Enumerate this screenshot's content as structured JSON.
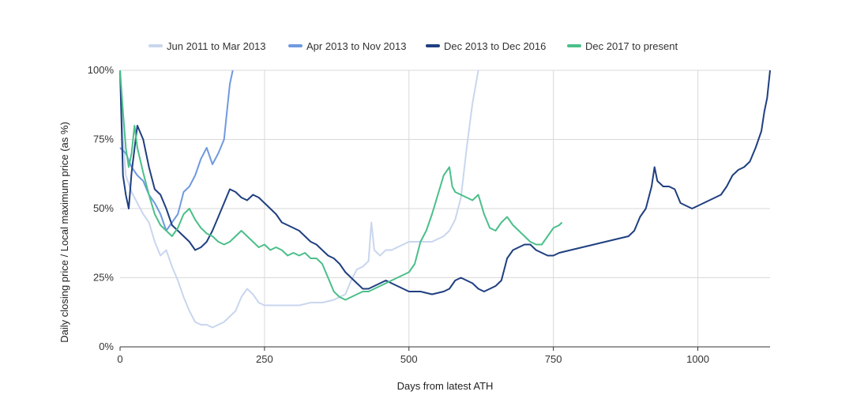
{
  "chart_data": {
    "type": "line",
    "xlabel": "Days from latest ATH",
    "ylabel": "Daily closing price / Local maximum price (as %)",
    "xlim": [
      0,
      1125
    ],
    "ylim": [
      0,
      100
    ],
    "x_ticks": [
      0,
      250,
      500,
      750,
      1000
    ],
    "y_ticks": [
      0,
      25,
      50,
      75,
      100
    ],
    "x_tick_labels": [
      "0",
      "250",
      "500",
      "750",
      "1000"
    ],
    "y_tick_labels": [
      "0%",
      "25%",
      "50%",
      "75%",
      "100%"
    ],
    "grid": true,
    "legend_position": "top",
    "series": [
      {
        "name": "Jun 2011 to Mar 2013",
        "color": "#c9d6ee",
        "points": [
          [
            0,
            100
          ],
          [
            5,
            75
          ],
          [
            10,
            62
          ],
          [
            20,
            56
          ],
          [
            30,
            52
          ],
          [
            40,
            48
          ],
          [
            50,
            45
          ],
          [
            60,
            38
          ],
          [
            70,
            33
          ],
          [
            80,
            35
          ],
          [
            90,
            29
          ],
          [
            100,
            24
          ],
          [
            110,
            18
          ],
          [
            120,
            13
          ],
          [
            130,
            9
          ],
          [
            140,
            8
          ],
          [
            150,
            8
          ],
          [
            160,
            7
          ],
          [
            170,
            8
          ],
          [
            180,
            9
          ],
          [
            190,
            11
          ],
          [
            200,
            13
          ],
          [
            210,
            18
          ],
          [
            220,
            21
          ],
          [
            230,
            19
          ],
          [
            240,
            16
          ],
          [
            250,
            15
          ],
          [
            270,
            15
          ],
          [
            290,
            15
          ],
          [
            310,
            15
          ],
          [
            330,
            16
          ],
          [
            350,
            16
          ],
          [
            370,
            17
          ],
          [
            390,
            19
          ],
          [
            400,
            24
          ],
          [
            410,
            28
          ],
          [
            420,
            29
          ],
          [
            430,
            31
          ],
          [
            435,
            45
          ],
          [
            440,
            35
          ],
          [
            450,
            33
          ],
          [
            460,
            35
          ],
          [
            470,
            35
          ],
          [
            480,
            36
          ],
          [
            500,
            38
          ],
          [
            520,
            38
          ],
          [
            540,
            38
          ],
          [
            560,
            40
          ],
          [
            570,
            42
          ],
          [
            580,
            46
          ],
          [
            590,
            54
          ],
          [
            600,
            72
          ],
          [
            610,
            88
          ],
          [
            620,
            100
          ]
        ]
      },
      {
        "name": "Apr 2013 to Nov 2013",
        "color": "#6f9ae0",
        "points": [
          [
            0,
            72
          ],
          [
            10,
            70
          ],
          [
            20,
            65
          ],
          [
            30,
            62
          ],
          [
            40,
            60
          ],
          [
            50,
            55
          ],
          [
            60,
            52
          ],
          [
            70,
            48
          ],
          [
            80,
            42
          ],
          [
            90,
            45
          ],
          [
            100,
            48
          ],
          [
            110,
            56
          ],
          [
            120,
            58
          ],
          [
            130,
            62
          ],
          [
            140,
            68
          ],
          [
            150,
            72
          ],
          [
            160,
            66
          ],
          [
            170,
            70
          ],
          [
            180,
            75
          ],
          [
            185,
            85
          ],
          [
            190,
            95
          ],
          [
            195,
            100
          ]
        ]
      },
      {
        "name": "Dec 2013 to Dec 2016",
        "color": "#1f3f80",
        "points": [
          [
            0,
            100
          ],
          [
            5,
            62
          ],
          [
            10,
            55
          ],
          [
            15,
            50
          ],
          [
            20,
            63
          ],
          [
            30,
            80
          ],
          [
            40,
            75
          ],
          [
            50,
            65
          ],
          [
            60,
            57
          ],
          [
            70,
            55
          ],
          [
            80,
            50
          ],
          [
            90,
            44
          ],
          [
            100,
            42
          ],
          [
            110,
            40
          ],
          [
            120,
            38
          ],
          [
            130,
            35
          ],
          [
            140,
            36
          ],
          [
            150,
            38
          ],
          [
            160,
            42
          ],
          [
            170,
            47
          ],
          [
            180,
            52
          ],
          [
            190,
            57
          ],
          [
            200,
            56
          ],
          [
            210,
            54
          ],
          [
            220,
            53
          ],
          [
            230,
            55
          ],
          [
            240,
            54
          ],
          [
            250,
            52
          ],
          [
            260,
            50
          ],
          [
            270,
            48
          ],
          [
            280,
            45
          ],
          [
            290,
            44
          ],
          [
            300,
            43
          ],
          [
            310,
            42
          ],
          [
            320,
            40
          ],
          [
            330,
            38
          ],
          [
            340,
            37
          ],
          [
            350,
            35
          ],
          [
            360,
            33
          ],
          [
            370,
            32
          ],
          [
            380,
            30
          ],
          [
            390,
            27
          ],
          [
            400,
            25
          ],
          [
            410,
            23
          ],
          [
            420,
            21
          ],
          [
            430,
            21
          ],
          [
            440,
            22
          ],
          [
            450,
            23
          ],
          [
            460,
            24
          ],
          [
            470,
            23
          ],
          [
            480,
            22
          ],
          [
            490,
            21
          ],
          [
            500,
            20
          ],
          [
            520,
            20
          ],
          [
            540,
            19
          ],
          [
            560,
            20
          ],
          [
            570,
            21
          ],
          [
            580,
            24
          ],
          [
            590,
            25
          ],
          [
            600,
            24
          ],
          [
            610,
            23
          ],
          [
            620,
            21
          ],
          [
            630,
            20
          ],
          [
            640,
            21
          ],
          [
            650,
            22
          ],
          [
            660,
            24
          ],
          [
            670,
            32
          ],
          [
            680,
            35
          ],
          [
            690,
            36
          ],
          [
            700,
            37
          ],
          [
            710,
            37
          ],
          [
            720,
            35
          ],
          [
            730,
            34
          ],
          [
            740,
            33
          ],
          [
            750,
            33
          ],
          [
            760,
            34
          ],
          [
            780,
            35
          ],
          [
            800,
            36
          ],
          [
            820,
            37
          ],
          [
            840,
            38
          ],
          [
            860,
            39
          ],
          [
            880,
            40
          ],
          [
            890,
            42
          ],
          [
            900,
            47
          ],
          [
            910,
            50
          ],
          [
            920,
            58
          ],
          [
            925,
            65
          ],
          [
            930,
            60
          ],
          [
            940,
            58
          ],
          [
            950,
            58
          ],
          [
            960,
            57
          ],
          [
            970,
            52
          ],
          [
            980,
            51
          ],
          [
            990,
            50
          ],
          [
            1000,
            51
          ],
          [
            1010,
            52
          ],
          [
            1020,
            53
          ],
          [
            1030,
            54
          ],
          [
            1040,
            55
          ],
          [
            1050,
            58
          ],
          [
            1060,
            62
          ],
          [
            1070,
            64
          ],
          [
            1080,
            65
          ],
          [
            1090,
            67
          ],
          [
            1100,
            72
          ],
          [
            1110,
            78
          ],
          [
            1115,
            85
          ],
          [
            1120,
            90
          ],
          [
            1125,
            100
          ]
        ]
      },
      {
        "name": "Dec 2017 to present",
        "color": "#4bbf8a",
        "points": [
          [
            0,
            100
          ],
          [
            5,
            85
          ],
          [
            10,
            72
          ],
          [
            15,
            65
          ],
          [
            20,
            70
          ],
          [
            25,
            80
          ],
          [
            30,
            72
          ],
          [
            40,
            63
          ],
          [
            50,
            55
          ],
          [
            60,
            48
          ],
          [
            70,
            44
          ],
          [
            80,
            42
          ],
          [
            90,
            40
          ],
          [
            100,
            43
          ],
          [
            110,
            48
          ],
          [
            120,
            50
          ],
          [
            130,
            46
          ],
          [
            140,
            43
          ],
          [
            150,
            41
          ],
          [
            160,
            40
          ],
          [
            170,
            38
          ],
          [
            180,
            37
          ],
          [
            190,
            38
          ],
          [
            200,
            40
          ],
          [
            210,
            42
          ],
          [
            220,
            40
          ],
          [
            230,
            38
          ],
          [
            240,
            36
          ],
          [
            250,
            37
          ],
          [
            260,
            35
          ],
          [
            270,
            36
          ],
          [
            280,
            35
          ],
          [
            290,
            33
          ],
          [
            300,
            34
          ],
          [
            310,
            33
          ],
          [
            320,
            34
          ],
          [
            330,
            32
          ],
          [
            340,
            32
          ],
          [
            350,
            30
          ],
          [
            360,
            25
          ],
          [
            370,
            20
          ],
          [
            380,
            18
          ],
          [
            390,
            17
          ],
          [
            400,
            18
          ],
          [
            410,
            19
          ],
          [
            420,
            20
          ],
          [
            430,
            20
          ],
          [
            440,
            21
          ],
          [
            450,
            22
          ],
          [
            460,
            23
          ],
          [
            470,
            24
          ],
          [
            480,
            25
          ],
          [
            490,
            26
          ],
          [
            500,
            27
          ],
          [
            510,
            30
          ],
          [
            520,
            38
          ],
          [
            530,
            42
          ],
          [
            540,
            48
          ],
          [
            550,
            55
          ],
          [
            560,
            62
          ],
          [
            570,
            65
          ],
          [
            575,
            58
          ],
          [
            580,
            56
          ],
          [
            590,
            55
          ],
          [
            600,
            54
          ],
          [
            610,
            53
          ],
          [
            620,
            55
          ],
          [
            630,
            48
          ],
          [
            640,
            43
          ],
          [
            650,
            42
          ],
          [
            660,
            45
          ],
          [
            670,
            47
          ],
          [
            680,
            44
          ],
          [
            690,
            42
          ],
          [
            700,
            40
          ],
          [
            710,
            38
          ],
          [
            720,
            37
          ],
          [
            730,
            37
          ],
          [
            740,
            40
          ],
          [
            750,
            43
          ],
          [
            760,
            44
          ],
          [
            765,
            45
          ]
        ]
      }
    ]
  }
}
